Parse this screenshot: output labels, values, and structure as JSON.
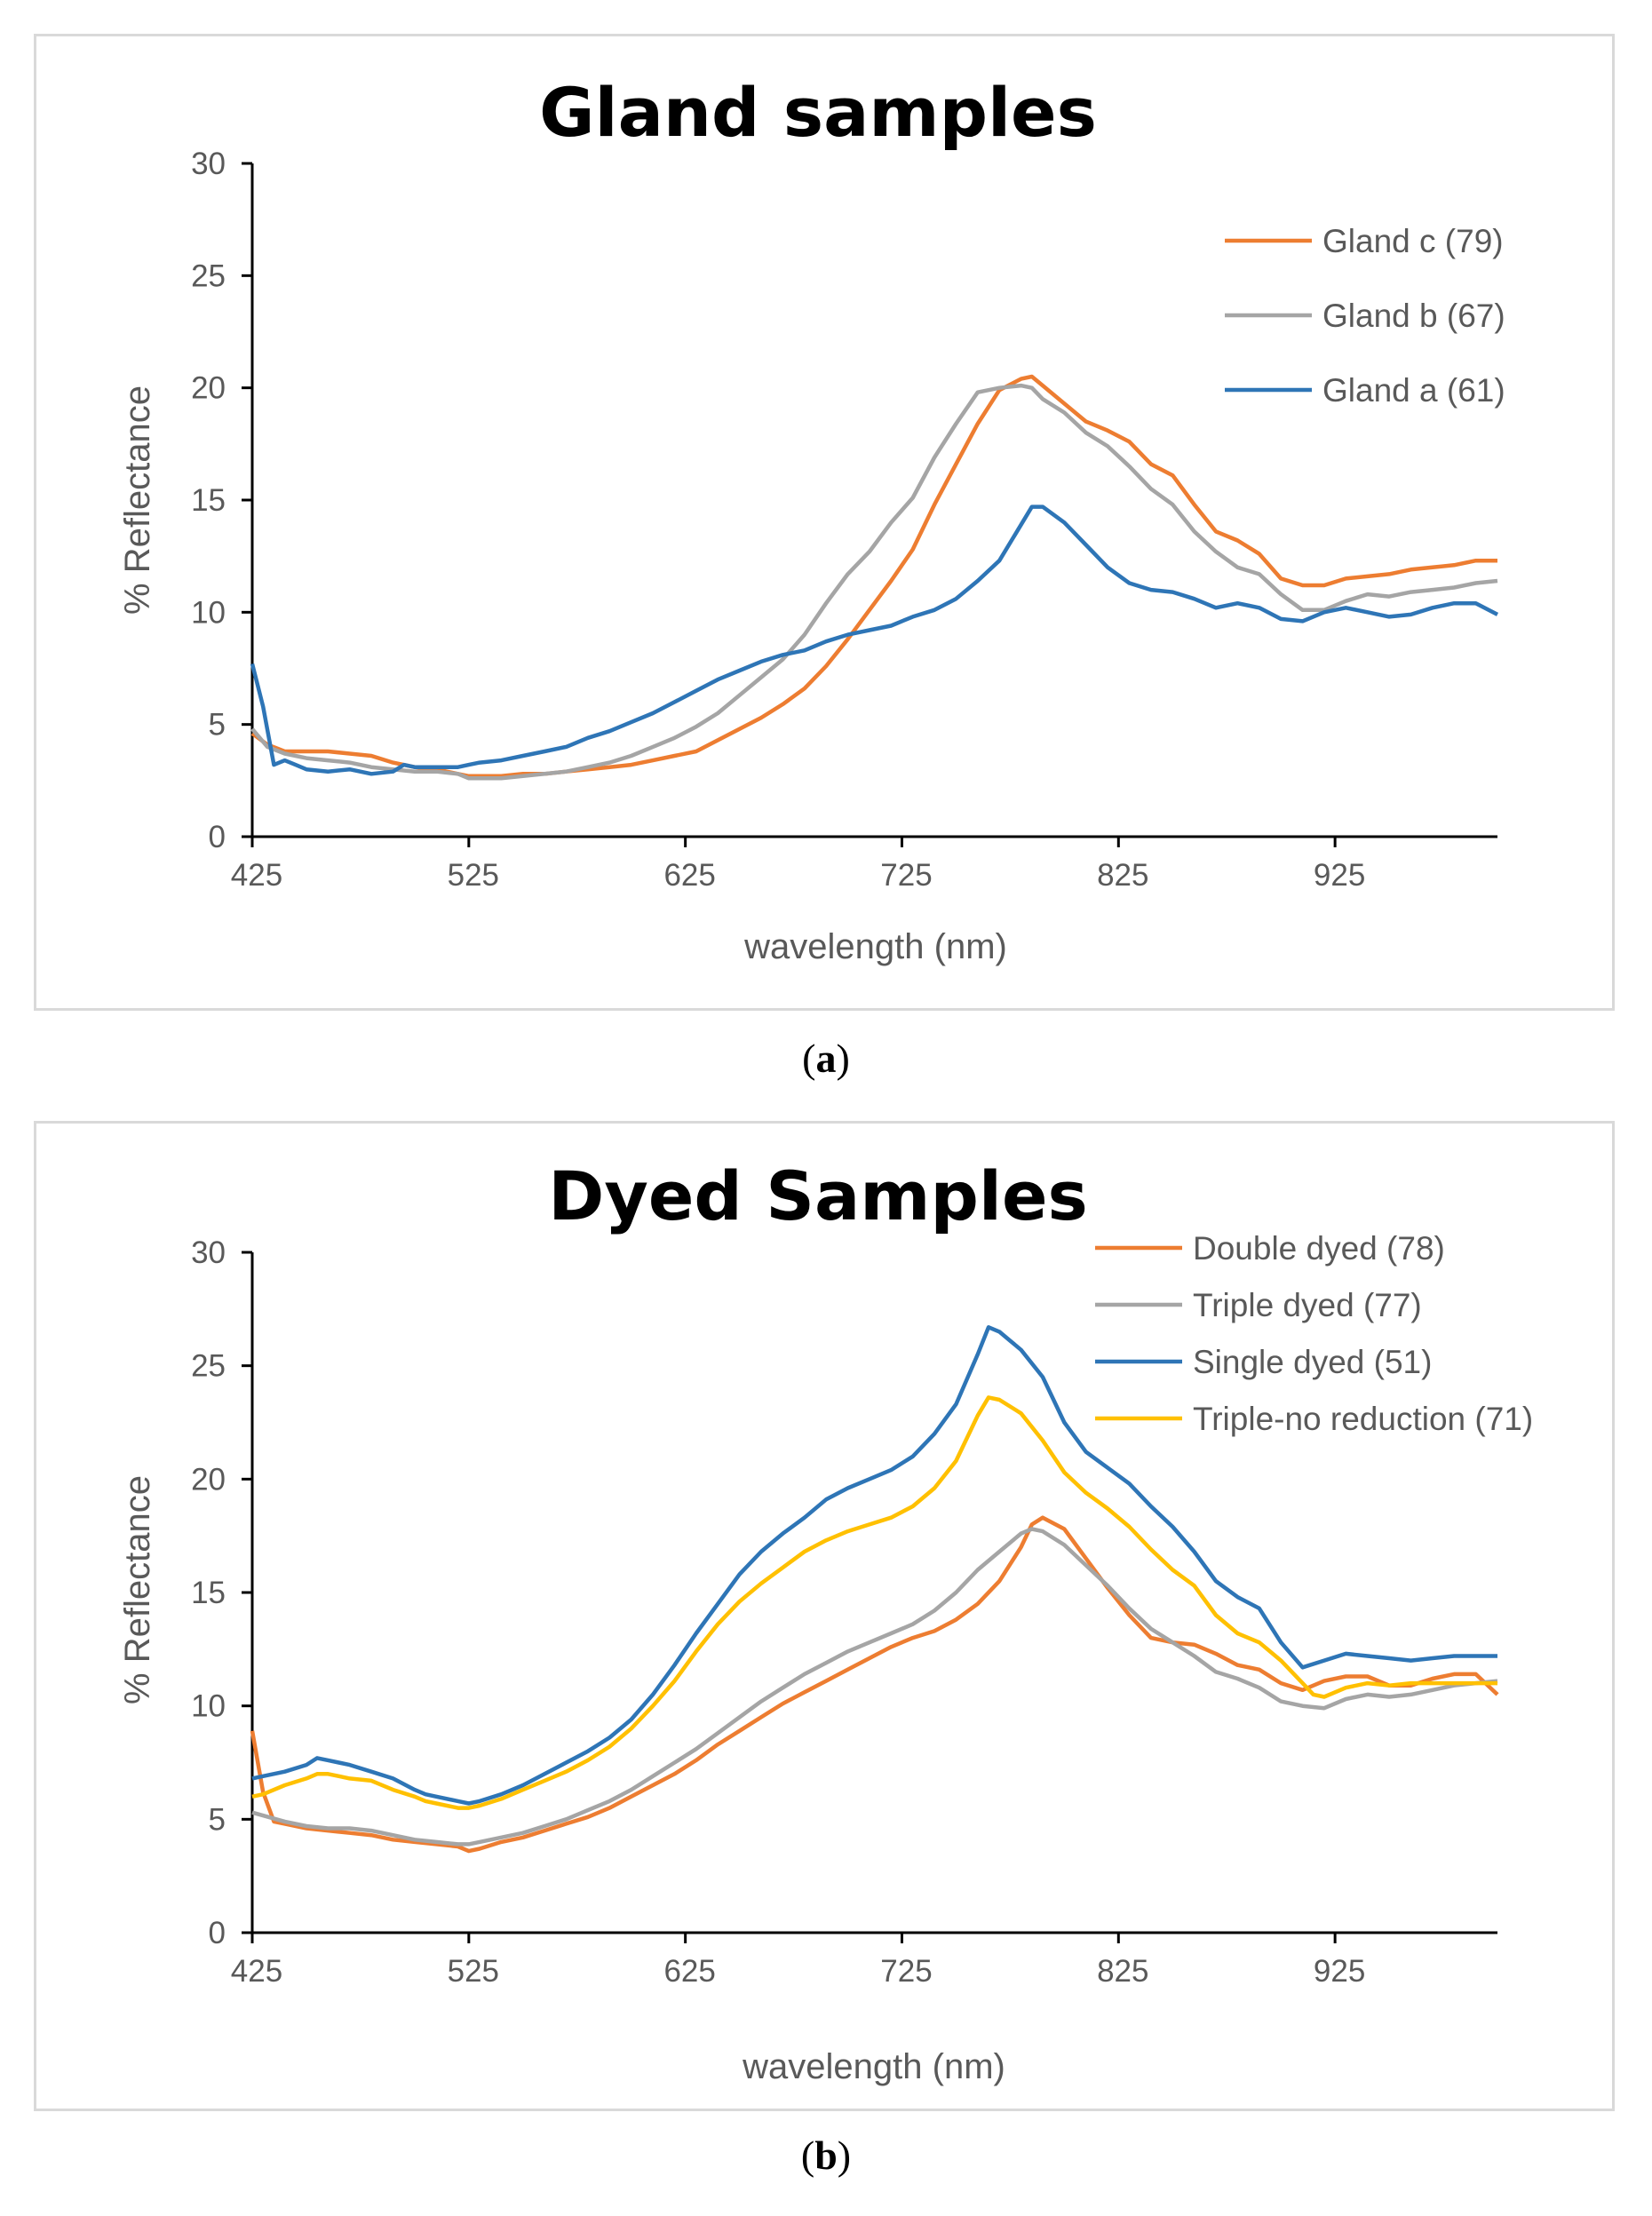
{
  "chart_data": [
    {
      "type": "line",
      "title": "Gland samples",
      "xlabel": "wavelength (nm)",
      "ylabel": "% Reflectance",
      "xlim": [
        425,
        1000
      ],
      "ylim": [
        0,
        30
      ],
      "x_ticks": [
        425,
        525,
        625,
        725,
        825,
        925
      ],
      "y_ticks": [
        0,
        5,
        10,
        15,
        20,
        25,
        30
      ],
      "grid": false,
      "legend_position": "top-right",
      "caption": "a",
      "series": [
        {
          "name": "Gland c (79)",
          "color": "#ED7D31",
          "x": [
            425,
            432,
            440,
            450,
            460,
            470,
            480,
            490,
            500,
            510,
            520,
            525,
            530,
            540,
            550,
            560,
            570,
            580,
            590,
            600,
            610,
            620,
            630,
            640,
            650,
            660,
            670,
            680,
            690,
            700,
            710,
            720,
            730,
            740,
            750,
            760,
            770,
            780,
            785,
            790,
            800,
            810,
            820,
            830,
            840,
            850,
            860,
            870,
            880,
            890,
            900,
            910,
            920,
            930,
            940,
            950,
            960,
            970,
            980,
            990,
            1000
          ],
          "y": [
            4.6,
            4.1,
            3.8,
            3.8,
            3.8,
            3.7,
            3.6,
            3.3,
            3.1,
            3.0,
            2.8,
            2.7,
            2.7,
            2.7,
            2.8,
            2.8,
            2.9,
            3.0,
            3.1,
            3.2,
            3.4,
            3.6,
            3.8,
            4.3,
            4.8,
            5.3,
            5.9,
            6.6,
            7.6,
            8.8,
            10.1,
            11.4,
            12.8,
            14.8,
            16.6,
            18.4,
            19.9,
            20.4,
            20.5,
            20.1,
            19.3,
            18.5,
            18.1,
            17.6,
            16.6,
            16.1,
            14.8,
            13.6,
            13.2,
            12.6,
            11.5,
            11.2,
            11.2,
            11.5,
            11.6,
            11.7,
            11.9,
            12.0,
            12.1,
            12.3,
            12.3
          ]
        },
        {
          "name": "Gland b (67)",
          "color": "#A5A5A5",
          "x": [
            425,
            432,
            440,
            450,
            460,
            470,
            480,
            490,
            500,
            510,
            520,
            525,
            530,
            540,
            550,
            560,
            570,
            580,
            590,
            600,
            610,
            620,
            630,
            640,
            650,
            660,
            670,
            680,
            690,
            700,
            710,
            720,
            730,
            740,
            750,
            760,
            770,
            780,
            785,
            790,
            800,
            810,
            820,
            830,
            840,
            850,
            860,
            870,
            880,
            890,
            900,
            910,
            920,
            930,
            940,
            950,
            960,
            970,
            980,
            990,
            1000
          ],
          "y": [
            4.8,
            4.0,
            3.7,
            3.5,
            3.4,
            3.3,
            3.1,
            3.0,
            2.9,
            2.9,
            2.8,
            2.6,
            2.6,
            2.6,
            2.7,
            2.8,
            2.9,
            3.1,
            3.3,
            3.6,
            4.0,
            4.4,
            4.9,
            5.5,
            6.3,
            7.1,
            7.9,
            9.0,
            10.4,
            11.7,
            12.7,
            14.0,
            15.1,
            16.9,
            18.4,
            19.8,
            20.0,
            20.1,
            20.0,
            19.5,
            18.9,
            18.0,
            17.4,
            16.5,
            15.5,
            14.8,
            13.6,
            12.7,
            12.0,
            11.7,
            10.8,
            10.1,
            10.1,
            10.5,
            10.8,
            10.7,
            10.9,
            11.0,
            11.1,
            11.3,
            11.4
          ]
        },
        {
          "name": "Gland a (61)",
          "color": "#2E75B6",
          "x": [
            425,
            430,
            435,
            440,
            445,
            450,
            460,
            470,
            480,
            490,
            495,
            500,
            510,
            520,
            525,
            530,
            540,
            550,
            560,
            570,
            580,
            590,
            600,
            610,
            620,
            630,
            640,
            650,
            660,
            670,
            680,
            690,
            700,
            710,
            720,
            730,
            740,
            750,
            760,
            770,
            780,
            785,
            790,
            800,
            810,
            820,
            830,
            840,
            850,
            860,
            870,
            880,
            890,
            900,
            910,
            920,
            930,
            940,
            950,
            960,
            970,
            980,
            990,
            1000
          ],
          "y": [
            7.7,
            5.8,
            3.2,
            3.4,
            3.2,
            3.0,
            2.9,
            3.0,
            2.8,
            2.9,
            3.2,
            3.1,
            3.1,
            3.1,
            3.2,
            3.3,
            3.4,
            3.6,
            3.8,
            4.0,
            4.4,
            4.7,
            5.1,
            5.5,
            6.0,
            6.5,
            7.0,
            7.4,
            7.8,
            8.1,
            8.3,
            8.7,
            9.0,
            9.2,
            9.4,
            9.8,
            10.1,
            10.6,
            11.4,
            12.3,
            13.9,
            14.7,
            14.7,
            14.0,
            13.0,
            12.0,
            11.3,
            11.0,
            10.9,
            10.6,
            10.2,
            10.4,
            10.2,
            9.7,
            9.6,
            10.0,
            10.2,
            10.0,
            9.8,
            9.9,
            10.2,
            10.4,
            10.4,
            9.9
          ]
        }
      ]
    },
    {
      "type": "line",
      "title": "Dyed Samples",
      "xlabel": "wavelength (nm)",
      "ylabel": "% Reflectance",
      "xlim": [
        425,
        1000
      ],
      "ylim": [
        0,
        30
      ],
      "x_ticks": [
        425,
        525,
        625,
        725,
        825,
        925
      ],
      "y_ticks": [
        0,
        5,
        10,
        15,
        20,
        25,
        30
      ],
      "grid": false,
      "legend_position": "top-right",
      "caption": "b",
      "series": [
        {
          "name": "Double dyed (78)",
          "color": "#ED7D31",
          "x": [
            425,
            430,
            435,
            440,
            450,
            460,
            470,
            480,
            490,
            500,
            510,
            520,
            525,
            530,
            540,
            550,
            560,
            570,
            580,
            590,
            600,
            610,
            620,
            630,
            640,
            650,
            660,
            670,
            680,
            690,
            700,
            710,
            720,
            730,
            740,
            750,
            760,
            770,
            780,
            785,
            790,
            800,
            810,
            820,
            830,
            840,
            850,
            860,
            870,
            880,
            890,
            900,
            910,
            920,
            930,
            940,
            950,
            960,
            970,
            980,
            990,
            1000
          ],
          "y": [
            8.9,
            6.2,
            4.9,
            4.8,
            4.6,
            4.5,
            4.4,
            4.3,
            4.1,
            4.0,
            3.9,
            3.8,
            3.6,
            3.7,
            4.0,
            4.2,
            4.5,
            4.8,
            5.1,
            5.5,
            6.0,
            6.5,
            7.0,
            7.6,
            8.3,
            8.9,
            9.5,
            10.1,
            10.6,
            11.1,
            11.6,
            12.1,
            12.6,
            13.0,
            13.3,
            13.8,
            14.5,
            15.5,
            17.0,
            18.0,
            18.3,
            17.8,
            16.5,
            15.2,
            14.0,
            13.0,
            12.8,
            12.7,
            12.3,
            11.8,
            11.6,
            11.0,
            10.7,
            11.1,
            11.3,
            11.3,
            10.9,
            10.9,
            11.2,
            11.4,
            11.4,
            10.5
          ]
        },
        {
          "name": "Triple dyed (77)",
          "color": "#A5A5A5",
          "x": [
            425,
            440,
            450,
            460,
            470,
            480,
            490,
            500,
            510,
            520,
            525,
            530,
            540,
            550,
            560,
            570,
            580,
            590,
            600,
            610,
            620,
            630,
            640,
            650,
            660,
            670,
            680,
            690,
            700,
            710,
            720,
            730,
            740,
            750,
            760,
            770,
            780,
            785,
            790,
            800,
            810,
            820,
            830,
            840,
            850,
            860,
            870,
            880,
            890,
            900,
            910,
            920,
            930,
            940,
            950,
            960,
            970,
            980,
            990,
            1000
          ],
          "y": [
            5.3,
            4.9,
            4.7,
            4.6,
            4.6,
            4.5,
            4.3,
            4.1,
            4.0,
            3.9,
            3.9,
            4.0,
            4.2,
            4.4,
            4.7,
            5.0,
            5.4,
            5.8,
            6.3,
            6.9,
            7.5,
            8.1,
            8.8,
            9.5,
            10.2,
            10.8,
            11.4,
            11.9,
            12.4,
            12.8,
            13.2,
            13.6,
            14.2,
            15.0,
            16.0,
            16.8,
            17.6,
            17.8,
            17.7,
            17.1,
            16.2,
            15.3,
            14.3,
            13.4,
            12.8,
            12.2,
            11.5,
            11.2,
            10.8,
            10.2,
            10.0,
            9.9,
            10.3,
            10.5,
            10.4,
            10.5,
            10.7,
            10.9,
            11.0,
            11.1
          ]
        },
        {
          "name": "Single dyed (51)",
          "color": "#2E75B6",
          "x": [
            425,
            430,
            440,
            450,
            455,
            460,
            465,
            470,
            480,
            490,
            500,
            505,
            510,
            520,
            525,
            530,
            540,
            550,
            560,
            570,
            580,
            590,
            600,
            610,
            620,
            630,
            640,
            650,
            660,
            670,
            680,
            690,
            700,
            710,
            720,
            730,
            740,
            750,
            760,
            765,
            770,
            775,
            780,
            790,
            800,
            810,
            820,
            830,
            840,
            850,
            860,
            870,
            880,
            890,
            900,
            910,
            920,
            930,
            940,
            950,
            960,
            970,
            980,
            990,
            1000
          ],
          "y": [
            6.8,
            6.9,
            7.1,
            7.4,
            7.7,
            7.6,
            7.5,
            7.4,
            7.1,
            6.8,
            6.3,
            6.1,
            6.0,
            5.8,
            5.7,
            5.8,
            6.1,
            6.5,
            7.0,
            7.5,
            8.0,
            8.6,
            9.4,
            10.5,
            11.8,
            13.2,
            14.5,
            15.8,
            16.8,
            17.6,
            18.3,
            19.1,
            19.6,
            20.0,
            20.4,
            21.0,
            22.0,
            23.3,
            25.5,
            26.7,
            26.5,
            26.1,
            25.7,
            24.5,
            22.5,
            21.2,
            20.5,
            19.8,
            18.8,
            17.9,
            16.8,
            15.5,
            14.8,
            14.3,
            12.8,
            11.7,
            12.0,
            12.3,
            12.2,
            12.1,
            12.0,
            12.1,
            12.2,
            12.2,
            12.2
          ]
        },
        {
          "name": "Triple-no reduction (71)",
          "color": "#FFC000",
          "x": [
            425,
            430,
            440,
            450,
            455,
            460,
            465,
            470,
            480,
            490,
            500,
            505,
            510,
            520,
            525,
            530,
            540,
            550,
            560,
            570,
            580,
            590,
            600,
            610,
            620,
            630,
            640,
            650,
            660,
            670,
            680,
            690,
            700,
            710,
            720,
            730,
            740,
            750,
            760,
            765,
            770,
            775,
            780,
            790,
            800,
            810,
            820,
            830,
            840,
            850,
            860,
            870,
            880,
            890,
            900,
            910,
            915,
            920,
            930,
            940,
            950,
            960,
            970,
            980,
            990,
            1000
          ],
          "y": [
            6.0,
            6.1,
            6.5,
            6.8,
            7.0,
            7.0,
            6.9,
            6.8,
            6.7,
            6.3,
            6.0,
            5.8,
            5.7,
            5.5,
            5.5,
            5.6,
            5.9,
            6.3,
            6.7,
            7.1,
            7.6,
            8.2,
            9.0,
            10.0,
            11.1,
            12.4,
            13.6,
            14.6,
            15.4,
            16.1,
            16.8,
            17.3,
            17.7,
            18.0,
            18.3,
            18.8,
            19.6,
            20.8,
            22.8,
            23.6,
            23.5,
            23.2,
            22.9,
            21.7,
            20.3,
            19.4,
            18.7,
            17.9,
            16.9,
            16.0,
            15.3,
            14.0,
            13.2,
            12.8,
            12.0,
            11.0,
            10.5,
            10.4,
            10.8,
            11.0,
            10.9,
            11.0,
            11.0,
            11.0,
            11.0,
            11.0
          ]
        }
      ]
    }
  ]
}
